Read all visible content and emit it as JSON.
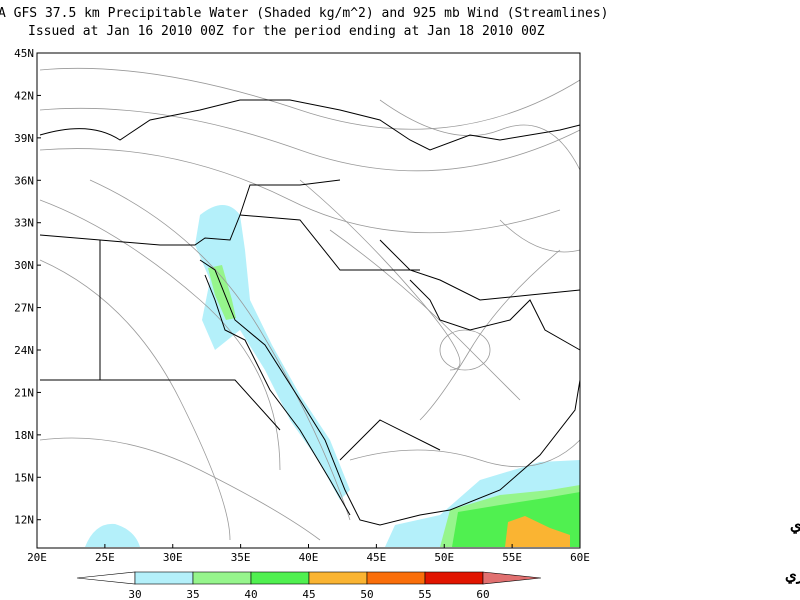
{
  "title": {
    "line1": "A GFS 37.5 km Precipitable Water (Shaded kg/m^2) and 925 mb Wind (Streamlines)",
    "line2": "Issued at Jan 16 2010 00Z for the period ending at Jan 18 2010 00Z"
  },
  "map": {
    "lonlim": [
      20,
      60
    ],
    "latlim": [
      10,
      45
    ],
    "lon_labels": [
      {
        "value": 20,
        "label": "20E"
      },
      {
        "value": 25,
        "label": "25E"
      },
      {
        "value": 30,
        "label": "30E"
      },
      {
        "value": 35,
        "label": "35E"
      },
      {
        "value": 40,
        "label": "40E"
      },
      {
        "value": 45,
        "label": "45E"
      },
      {
        "value": 50,
        "label": "50E"
      },
      {
        "value": 55,
        "label": "55E"
      },
      {
        "value": 60,
        "label": "60E"
      }
    ],
    "lat_labels": [
      {
        "value": 12,
        "label": "12N"
      },
      {
        "value": 15,
        "label": "15N"
      },
      {
        "value": 18,
        "label": "18N"
      },
      {
        "value": 21,
        "label": "21N"
      },
      {
        "value": 24,
        "label": "24N"
      },
      {
        "value": 27,
        "label": "27N"
      },
      {
        "value": 30,
        "label": "30N"
      },
      {
        "value": 33,
        "label": "33N"
      },
      {
        "value": 36,
        "label": "36N"
      },
      {
        "value": 39,
        "label": "39N"
      },
      {
        "value": 42,
        "label": "42N"
      },
      {
        "value": 45,
        "label": "45N"
      }
    ]
  },
  "colorbar": {
    "ticks": [
      30,
      35,
      40,
      45,
      50,
      55,
      60
    ],
    "colors": [
      "#ffffff",
      "#b4f0fa",
      "#96f58c",
      "#50f050",
      "#fab432",
      "#fa6e0a",
      "#e11400",
      "#e17070"
    ]
  },
  "watermark": {
    "line1": "متابع جوي",
    "line2": "البراري"
  }
}
